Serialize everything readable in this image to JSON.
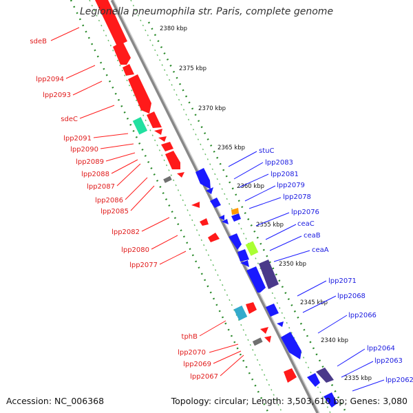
{
  "title": "Legionella pneumophila str. Paris, complete genome",
  "footer": {
    "accession": "Accession: NC_006368",
    "summary": "Topology: circular; Length: 3,503,610 bp; Genes: 3,080"
  },
  "colors": {
    "forward": "#ff1a1a",
    "reverse": "#1a1aff",
    "dark_gene": "#4a3a8a",
    "grey_gene": "#707070",
    "teal_gene": "#22e0a0",
    "orange_gene": "#ff9900",
    "lime_gene": "#aaff33",
    "backbone": "#888888",
    "scale_dots": "#2a8a2a"
  },
  "scale_ticks": [
    "2380 kbp",
    "2375 kbp",
    "2370 kbp",
    "2365 kbp",
    "2360 kbp",
    "2355 kbp",
    "2350 kbp",
    "2345 kbp",
    "2340 kbp",
    "2335 kbp"
  ],
  "forward_labels": [
    "sdeB",
    "lpp2094",
    "lpp2093",
    "sdeC",
    "lpp2091",
    "lpp2090",
    "lpp2089",
    "lpp2088",
    "lpp2087",
    "lpp2086",
    "lpp2085",
    "lpp2082",
    "lpp2080",
    "lpp2077",
    "tphB",
    "lpp2070",
    "lpp2069",
    "lpp2067"
  ],
  "reverse_labels": [
    "stuC",
    "lpp2083",
    "lpp2081",
    "lpp2079",
    "lpp2078",
    "lpp2076",
    "ceaC",
    "ceaB",
    "ceaA",
    "lpp2071",
    "lpp2068",
    "lpp2066",
    "lpp2064",
    "lpp2063",
    "lpp2062"
  ]
}
